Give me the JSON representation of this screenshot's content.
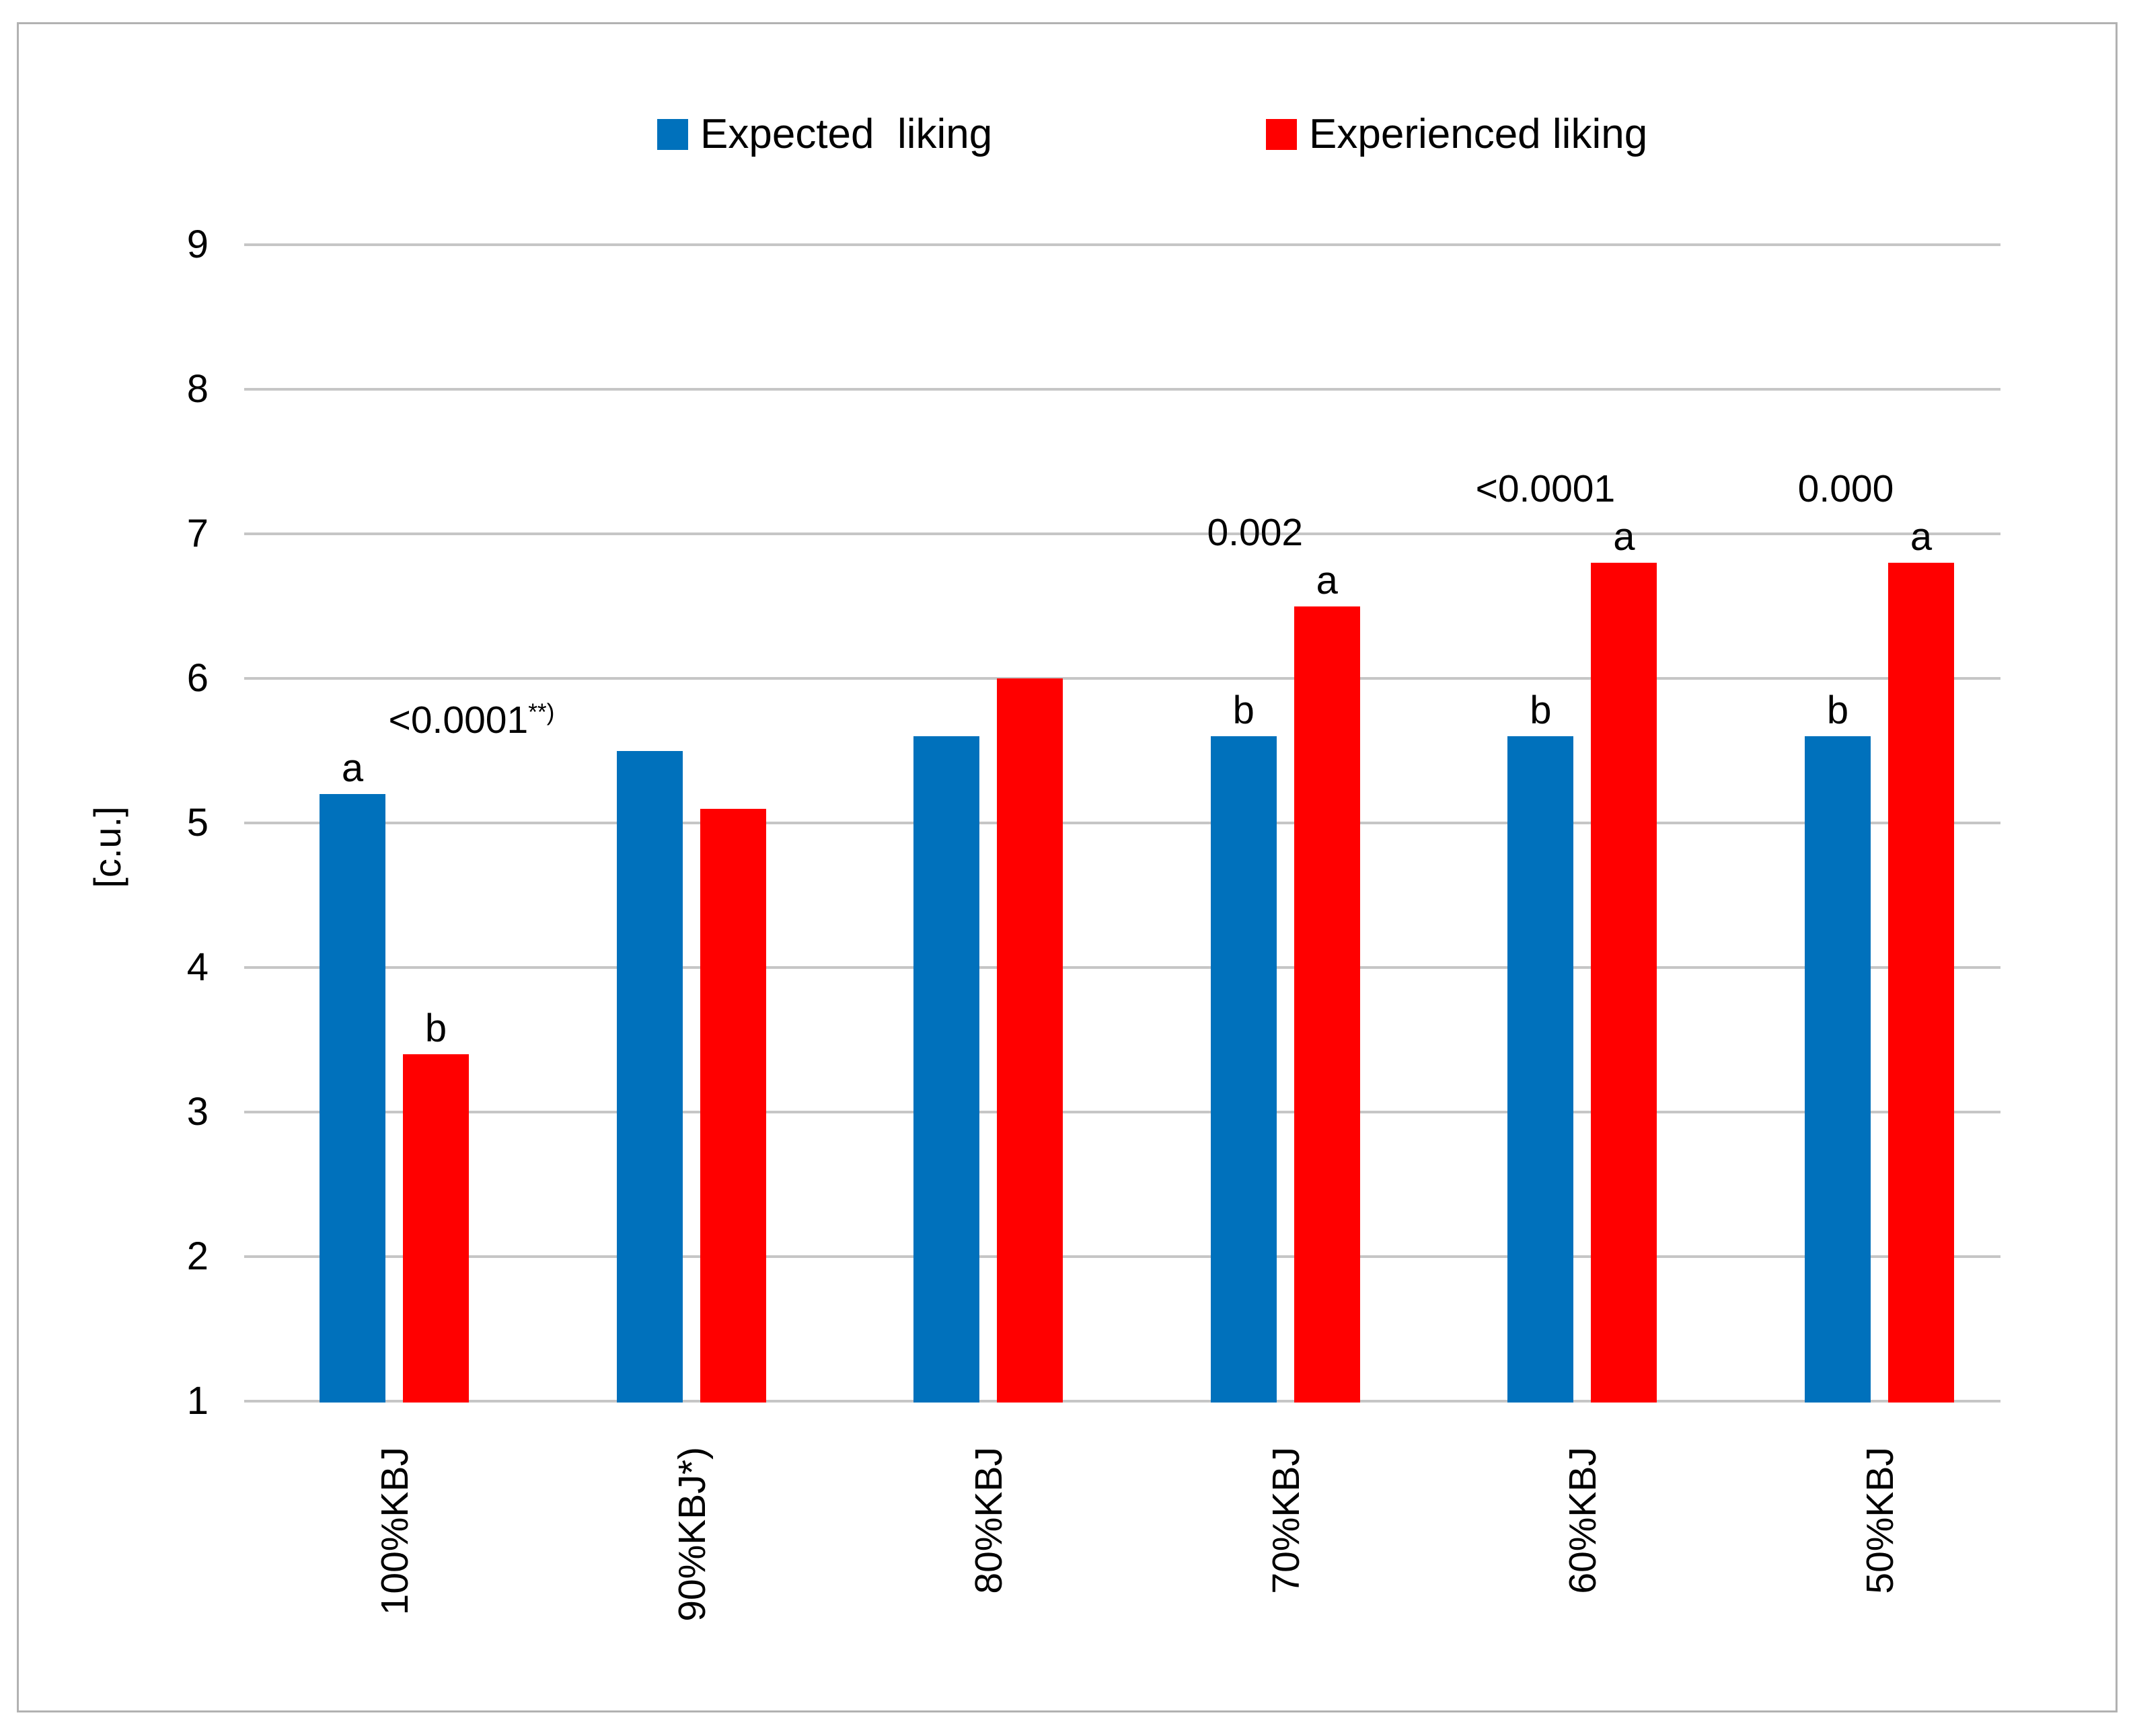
{
  "chart_data": {
    "type": "bar",
    "title": "",
    "categories": [
      "100%KBJ",
      "90%KBJ*)",
      "80%KBJ",
      "70%KBJ",
      "60%KBJ",
      "50%KBJ"
    ],
    "series": [
      {
        "name": "Expected  liking",
        "color": "#0071BC",
        "values": [
          5.2,
          5.5,
          5.6,
          5.6,
          5.6,
          5.6
        ]
      },
      {
        "name": "Experienced liking",
        "color": "#FF0000",
        "values": [
          3.4,
          5.1,
          6.0,
          6.5,
          6.8,
          6.8
        ]
      }
    ],
    "xlabel": "",
    "ylabel": "[c.u.]",
    "ylim": [
      1,
      9
    ],
    "yticks": [
      "1",
      "2",
      "3",
      "4",
      "5",
      "6",
      "7",
      "8",
      "9"
    ],
    "grid": true,
    "gridline_color": "#c6c6c6",
    "legend_position": "top",
    "annotations": [
      {
        "group": 0,
        "p_value": "<0.0001",
        "p_suffix": "**)",
        "letter_expected": "a",
        "letter_experienced": "b",
        "p_x_offset": 115
      },
      {
        "group": 3,
        "p_value": "0.002",
        "p_suffix": "",
        "letter_expected": "b",
        "letter_experienced": "a",
        "p_x_offset": -45
      },
      {
        "group": 4,
        "p_value": "<0.0001",
        "p_suffix": "",
        "letter_expected": "b",
        "letter_experienced": "a",
        "p_x_offset": -55
      },
      {
        "group": 5,
        "p_value": "0.000",
        "p_suffix": "",
        "letter_expected": "b",
        "letter_experienced": "a",
        "p_x_offset": -50
      }
    ]
  }
}
